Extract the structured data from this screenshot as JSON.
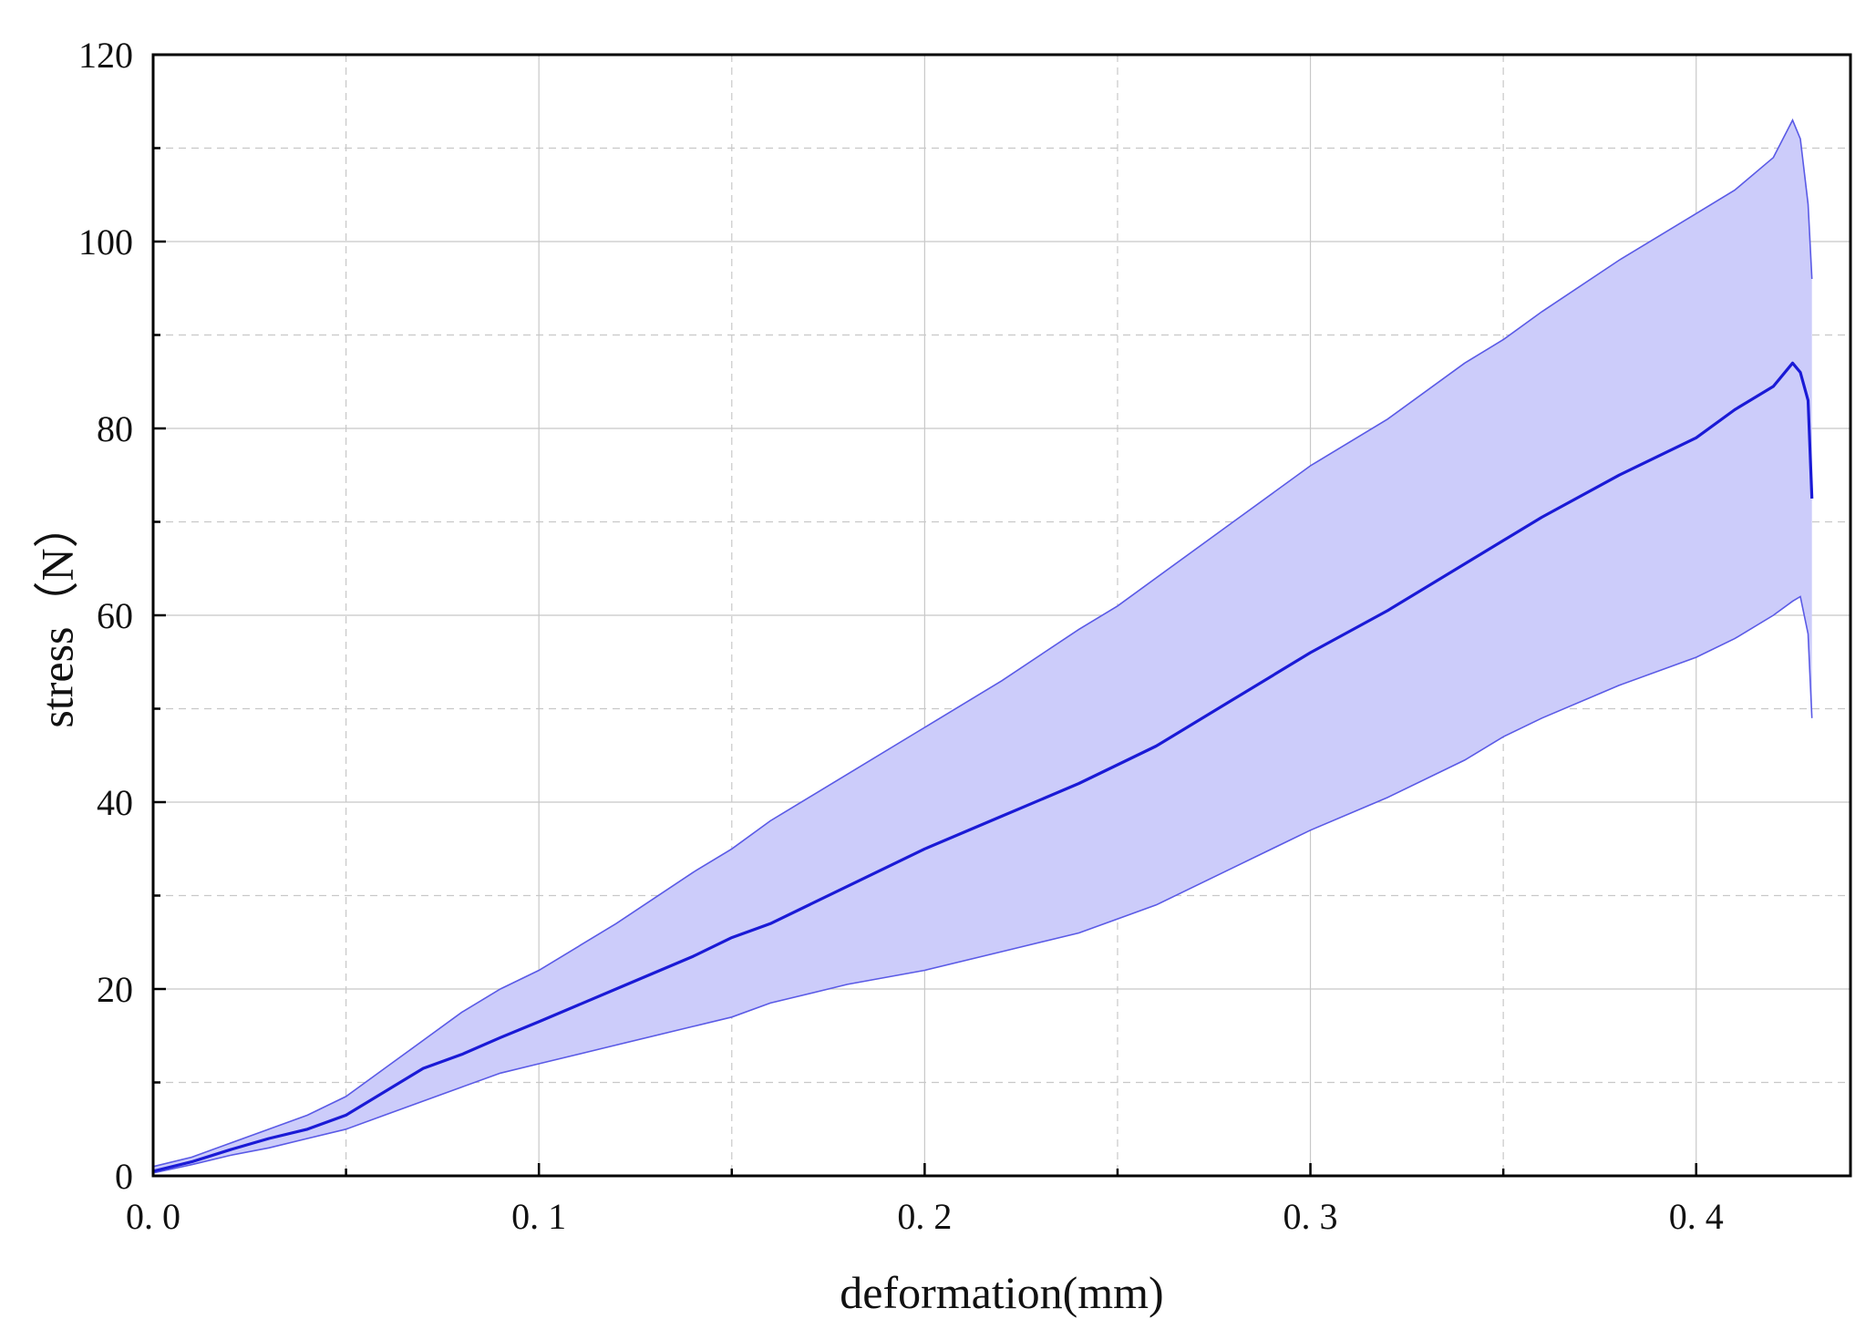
{
  "chart_data": {
    "type": "line",
    "title": "",
    "xlabel": "deformation(mm)",
    "ylabel": "stress（N）",
    "xlim": [
      0,
      0.44
    ],
    "ylim": [
      0,
      120
    ],
    "x_ticks": [
      0.0,
      0.1,
      0.2,
      0.3,
      0.4
    ],
    "x_tick_labels": [
      "0. 0",
      "0. 1",
      "0. 2",
      "0. 3",
      "0. 4"
    ],
    "x_minor_ticks": [
      0.05,
      0.15,
      0.25,
      0.35
    ],
    "y_ticks": [
      0,
      20,
      40,
      60,
      80,
      100,
      120
    ],
    "y_tick_labels": [
      "0",
      "20",
      "40",
      "60",
      "80",
      "100",
      "120"
    ],
    "y_minor_ticks": [
      10,
      30,
      50,
      70,
      90,
      110
    ],
    "grid": true,
    "legend": "none",
    "colors": {
      "line": "#1a1ad6",
      "band_fill": "#ccccfa",
      "band_edge": "#5a5ae6",
      "grid": "#c8c8c8",
      "axis": "#000000"
    },
    "series": [
      {
        "role": "mean",
        "x": [
          0,
          0.01,
          0.02,
          0.03,
          0.04,
          0.05,
          0.06,
          0.07,
          0.08,
          0.09,
          0.1,
          0.12,
          0.14,
          0.15,
          0.16,
          0.18,
          0.2,
          0.22,
          0.24,
          0.25,
          0.26,
          0.28,
          0.3,
          0.32,
          0.34,
          0.35,
          0.36,
          0.38,
          0.4,
          0.41,
          0.42,
          0.425,
          0.427,
          0.429,
          0.43
        ],
        "y": [
          0.5,
          1.5,
          2.8,
          4.0,
          5.0,
          6.5,
          9.0,
          11.5,
          13.0,
          14.8,
          16.5,
          20.0,
          23.5,
          25.5,
          27.0,
          31.0,
          35.0,
          38.5,
          42.0,
          44.0,
          46.0,
          51.0,
          56.0,
          60.5,
          65.5,
          68.0,
          70.5,
          75.0,
          79.0,
          82.0,
          84.5,
          87.0,
          86.0,
          83.0,
          72.5
        ]
      },
      {
        "role": "upper-bound",
        "x": [
          0,
          0.01,
          0.02,
          0.03,
          0.04,
          0.05,
          0.06,
          0.07,
          0.08,
          0.09,
          0.1,
          0.12,
          0.14,
          0.15,
          0.16,
          0.18,
          0.2,
          0.22,
          0.24,
          0.25,
          0.26,
          0.28,
          0.3,
          0.32,
          0.34,
          0.35,
          0.36,
          0.38,
          0.4,
          0.41,
          0.42,
          0.425,
          0.427,
          0.429,
          0.43
        ],
        "y": [
          1.0,
          2.0,
          3.5,
          5.0,
          6.5,
          8.5,
          11.5,
          14.5,
          17.5,
          20.0,
          22.0,
          27.0,
          32.5,
          35.0,
          38.0,
          43.0,
          48.0,
          53.0,
          58.5,
          61.0,
          64.0,
          70.0,
          76.0,
          81.0,
          87.0,
          89.5,
          92.5,
          98.0,
          103.0,
          105.5,
          109.0,
          113.0,
          111.0,
          104.0,
          96.0
        ]
      },
      {
        "role": "lower-bound",
        "x": [
          0,
          0.01,
          0.02,
          0.03,
          0.04,
          0.05,
          0.06,
          0.07,
          0.08,
          0.09,
          0.1,
          0.12,
          0.14,
          0.15,
          0.16,
          0.18,
          0.2,
          0.22,
          0.24,
          0.25,
          0.26,
          0.28,
          0.3,
          0.32,
          0.34,
          0.35,
          0.36,
          0.38,
          0.4,
          0.41,
          0.42,
          0.425,
          0.427,
          0.429,
          0.43
        ],
        "y": [
          0.3,
          1.2,
          2.2,
          3.0,
          4.0,
          5.0,
          6.5,
          8.0,
          9.5,
          11.0,
          12.0,
          14.0,
          16.0,
          17.0,
          18.5,
          20.5,
          22.0,
          24.0,
          26.0,
          27.5,
          29.0,
          33.0,
          37.0,
          40.5,
          44.5,
          47.0,
          49.0,
          52.5,
          55.5,
          57.5,
          60.0,
          61.5,
          62.0,
          58.0,
          49.0
        ]
      }
    ]
  }
}
